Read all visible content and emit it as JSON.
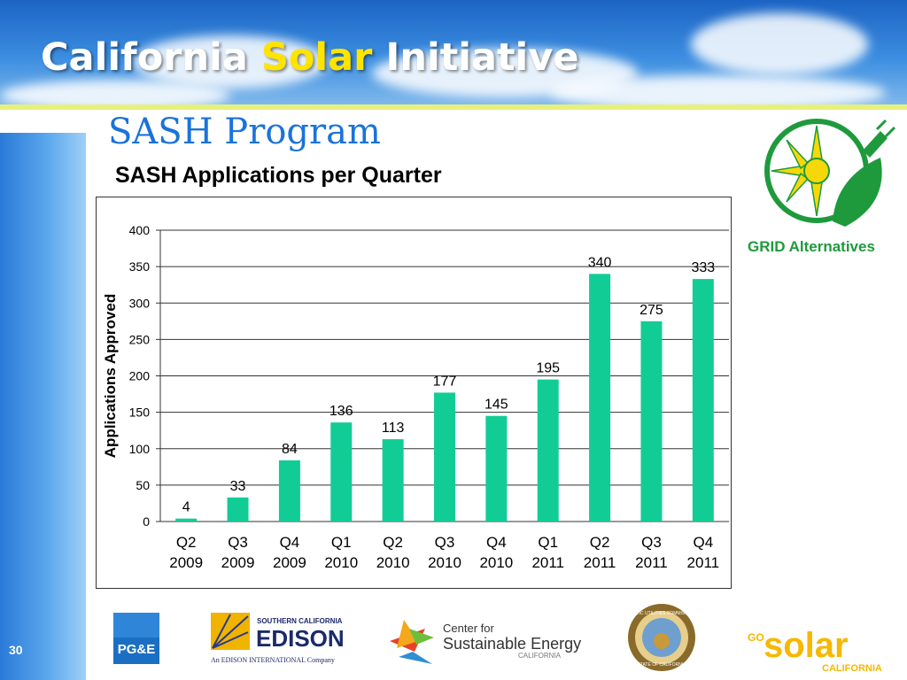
{
  "slide": {
    "title_part1": "California",
    "title_part2": "Solar",
    "title_part3": "Initiative",
    "subtitle": "SASH Program",
    "chart_heading": "SASH Applications per Quarter",
    "slide_number": "30",
    "colors": {
      "bar": "#12cc96",
      "title_accent": "#ffe400",
      "subtitle": "#1a73d9"
    }
  },
  "logos": {
    "grid": {
      "text": "GRID Alternatives",
      "icon": "sun-plug-leaf-icon"
    },
    "pge": {
      "text": "PG&E"
    },
    "edison": {
      "top": "SOUTHERN CALIFORNIA",
      "main": "EDISON",
      "sub": "An EDISON INTERNATIONAL Company"
    },
    "cse": {
      "line1": "Center for",
      "line2": "Sustainable Energy",
      "line3": "CALIFORNIA"
    },
    "cpuc": {
      "icon": "state-seal-icon",
      "ring_top": "PUBLIC UTILITIES COMMISSION",
      "ring_bottom": "STATE OF CALIFORNIA"
    },
    "gosolar": {
      "go": "GO",
      "main": "solar",
      "sub": "CALIFORNIA"
    }
  },
  "chart_data": {
    "type": "bar",
    "title": "SASH Applications per Quarter",
    "ylabel": "Applications Approved",
    "xlabel": "",
    "ylim": [
      0,
      400
    ],
    "yticks": [
      0,
      50,
      100,
      150,
      200,
      250,
      300,
      350,
      400
    ],
    "grid": true,
    "categories": [
      [
        "Q2",
        "2009"
      ],
      [
        "Q3",
        "2009"
      ],
      [
        "Q4",
        "2009"
      ],
      [
        "Q1",
        "2010"
      ],
      [
        "Q2",
        "2010"
      ],
      [
        "Q3",
        "2010"
      ],
      [
        "Q4",
        "2010"
      ],
      [
        "Q1",
        "2011"
      ],
      [
        "Q2",
        "2011"
      ],
      [
        "Q3",
        "2011"
      ],
      [
        "Q4",
        "2011"
      ]
    ],
    "values": [
      4,
      33,
      84,
      136,
      113,
      177,
      145,
      195,
      340,
      275,
      333
    ]
  }
}
